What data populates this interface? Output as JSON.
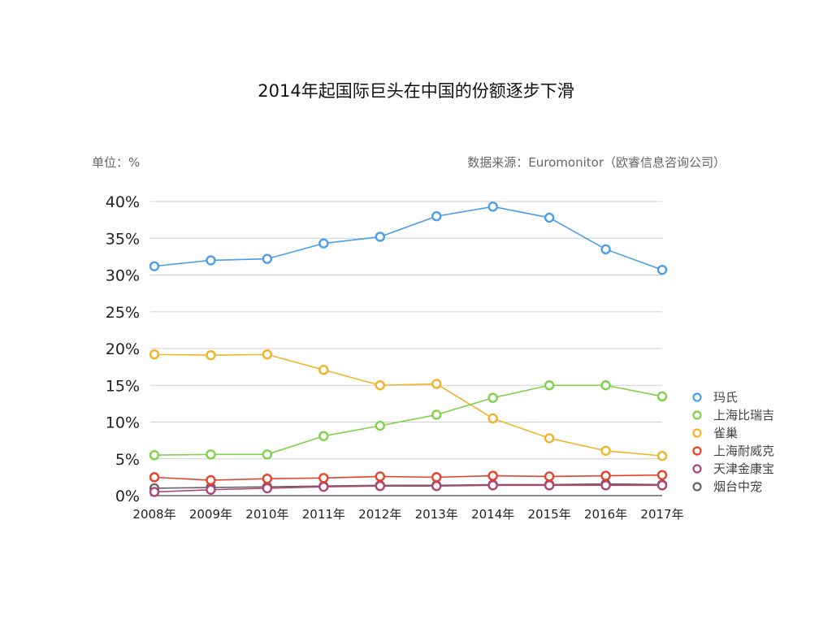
{
  "title": "2014年起国际巨头在中国的份额逐步下滑",
  "unit_label": "单位：%",
  "source_label": "数据来源：Euromonitor（欧睿信息咨询公司）",
  "chart_data": {
    "type": "line",
    "title": "2014年起国际巨头在中国的份额逐步下滑",
    "xlabel": "",
    "ylabel": "",
    "categories": [
      "2008年",
      "2009年",
      "2010年",
      "2011年",
      "2012年",
      "2013年",
      "2014年",
      "2015年",
      "2016年",
      "2017年"
    ],
    "ylim": [
      0,
      40
    ],
    "yticks": [
      0,
      5,
      10,
      15,
      20,
      25,
      30,
      35,
      40
    ],
    "ytick_labels": [
      "0%",
      "5%",
      "10%",
      "15%",
      "20%",
      "25%",
      "30%",
      "35%",
      "40%"
    ],
    "grid": true,
    "legend_position": "right",
    "series": [
      {
        "name": "玛氏",
        "color": "#4a9eea",
        "values": [
          31.2,
          32.0,
          32.2,
          34.3,
          35.2,
          38.0,
          39.3,
          37.8,
          33.5,
          30.7
        ]
      },
      {
        "name": "上海比瑞吉",
        "color": "#7ed348",
        "values": [
          5.5,
          5.6,
          5.6,
          8.1,
          9.5,
          11.0,
          13.3,
          15.0,
          15.0,
          13.5
        ]
      },
      {
        "name": "雀巢",
        "color": "#f0b429",
        "values": [
          19.2,
          19.1,
          19.2,
          17.1,
          15.0,
          15.2,
          10.5,
          7.8,
          6.1,
          5.4
        ]
      },
      {
        "name": "上海耐威克",
        "color": "#e8402a",
        "values": [
          2.5,
          2.1,
          2.3,
          2.4,
          2.6,
          2.5,
          2.7,
          2.6,
          2.7,
          2.8
        ]
      },
      {
        "name": "天津金康宝",
        "color": "#b0457a",
        "values": [
          0.5,
          0.8,
          1.0,
          1.2,
          1.3,
          1.3,
          1.4,
          1.4,
          1.4,
          1.4
        ]
      },
      {
        "name": "烟台中宠",
        "color": "#666666",
        "values": [
          1.0,
          1.1,
          1.2,
          1.3,
          1.4,
          1.4,
          1.5,
          1.5,
          1.6,
          1.5
        ]
      }
    ]
  }
}
